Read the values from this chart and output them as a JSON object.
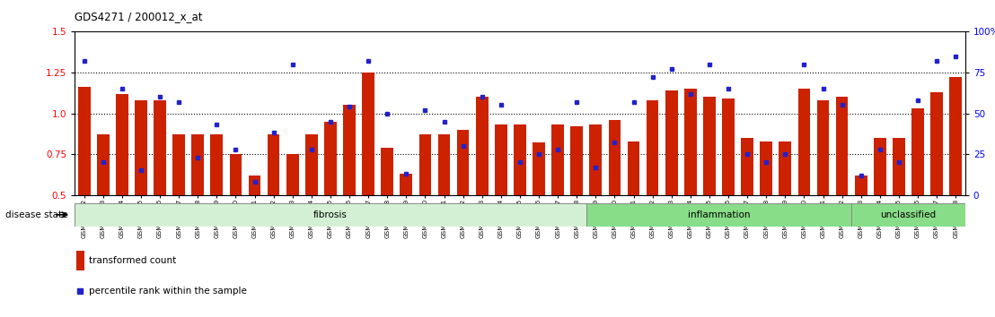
{
  "title": "GDS4271 / 200012_x_at",
  "samples": [
    "GSM380382",
    "GSM380383",
    "GSM380384",
    "GSM380385",
    "GSM380386",
    "GSM380387",
    "GSM380388",
    "GSM380389",
    "GSM380390",
    "GSM380391",
    "GSM380392",
    "GSM380393",
    "GSM380394",
    "GSM380395",
    "GSM380396",
    "GSM380397",
    "GSM380398",
    "GSM380399",
    "GSM380400",
    "GSM380401",
    "GSM380402",
    "GSM380403",
    "GSM380404",
    "GSM380405",
    "GSM380406",
    "GSM380407",
    "GSM380408",
    "GSM380409",
    "GSM380410",
    "GSM380411",
    "GSM380412",
    "GSM380413",
    "GSM380414",
    "GSM380415",
    "GSM380416",
    "GSM380417",
    "GSM380418",
    "GSM380419",
    "GSM380420",
    "GSM380421",
    "GSM380422",
    "GSM380423",
    "GSM380424",
    "GSM380425",
    "GSM380426",
    "GSM380427",
    "GSM380428"
  ],
  "bar_values": [
    1.16,
    0.87,
    1.12,
    1.08,
    1.08,
    0.87,
    0.87,
    0.87,
    0.75,
    0.62,
    0.87,
    0.75,
    0.87,
    0.95,
    1.05,
    1.25,
    0.79,
    0.63,
    0.87,
    0.87,
    0.9,
    1.1,
    0.93,
    0.93,
    0.82,
    0.93,
    0.92,
    0.93,
    0.96,
    0.83,
    1.08,
    1.14,
    1.15,
    1.1,
    1.09,
    0.85,
    0.83,
    0.83,
    1.15,
    1.08,
    1.1,
    0.62,
    0.85,
    0.85,
    1.03,
    1.13,
    1.22
  ],
  "percentile_values": [
    82,
    20,
    65,
    15,
    60,
    57,
    23,
    43,
    28,
    8,
    38,
    80,
    28,
    45,
    54,
    82,
    50,
    13,
    52,
    45,
    30,
    60,
    55,
    20,
    25,
    28,
    57,
    17,
    32,
    57,
    72,
    77,
    62,
    80,
    65,
    25,
    20,
    25,
    80,
    65,
    55,
    12,
    28,
    20,
    58,
    82,
    85
  ],
  "groups": [
    {
      "name": "fibrosis",
      "start": 0,
      "end": 27,
      "color": "#c8eec8"
    },
    {
      "name": "inflammation",
      "start": 27,
      "end": 41,
      "color": "#88dd88"
    },
    {
      "name": "unclassified",
      "start": 41,
      "end": 47,
      "color": "#88dd88"
    }
  ],
  "bar_color": "#cc2200",
  "dot_color": "#2222cc",
  "ylim_left": [
    0.5,
    1.5
  ],
  "ylim_right": [
    0,
    100
  ],
  "yticks_left": [
    0.5,
    0.75,
    1.0,
    1.25,
    1.5
  ],
  "yticks_right": [
    0,
    25,
    50,
    75,
    100
  ],
  "hlines": [
    0.75,
    1.0,
    1.25
  ]
}
